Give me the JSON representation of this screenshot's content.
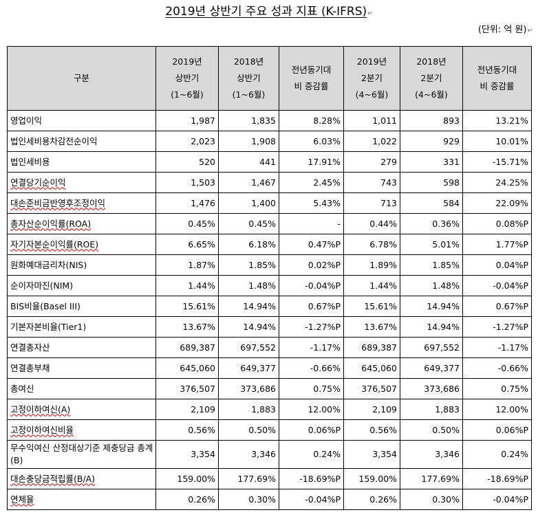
{
  "title": "2019년 상반기 주요 성과 지표 (K-IFRS)",
  "unit": "(단위: 억 원)",
  "columns": [
    {
      "lines": [
        "구분"
      ]
    },
    {
      "lines": [
        "2019년",
        "상반기",
        "(1~6월)"
      ]
    },
    {
      "lines": [
        "2018년",
        "상반기",
        "(1~6월)"
      ]
    },
    {
      "lines": [
        "전년동기대",
        "비 증감률"
      ]
    },
    {
      "lines": [
        "2019년",
        "2분기",
        "(4~6월)"
      ]
    },
    {
      "lines": [
        "2018년",
        "2분기",
        "(4~6월)"
      ]
    },
    {
      "lines": [
        "전년동기대",
        "비 증감률"
      ]
    }
  ],
  "rows": [
    {
      "label": "영업이익",
      "values": [
        "1,987",
        "1,835",
        "8.28%",
        "1,011",
        "893",
        "13.21%"
      ]
    },
    {
      "label": "법인세비용차감전순이익",
      "values": [
        "2,023",
        "1,908",
        "6.03%",
        "1,022",
        "929",
        "10.01%"
      ]
    },
    {
      "label": "법인세비용",
      "values": [
        "520",
        "441",
        "17.91%",
        "279",
        "331",
        "-15.71%"
      ]
    },
    {
      "label": "연결당기순이익",
      "values": [
        "1,503",
        "1,467",
        "2.45%",
        "743",
        "598",
        "24.25%"
      ]
    },
    {
      "label": "대손준비금반영후조정이익",
      "values": [
        "1,476",
        "1,400",
        "5.43%",
        "713",
        "584",
        "22.09%"
      ]
    },
    {
      "label": "총자산순이익률(ROA)",
      "values": [
        "0.45%",
        "0.45%",
        "-",
        "0.44%",
        "0.36%",
        "0.08%P"
      ]
    },
    {
      "label": "자기자본순이익률(ROE)",
      "values": [
        "6.65%",
        "6.18%",
        "0.47%P",
        "6.78%",
        "5.01%",
        "1.77%P"
      ]
    },
    {
      "label": "원화예대금리차(NIS)",
      "values": [
        "1.87%",
        "1.85%",
        "0.02%P",
        "1.89%",
        "1.85%",
        "0.04%P"
      ]
    },
    {
      "label": "순이자마진(NIM)",
      "values": [
        "1.44%",
        "1.48%",
        "-0.04%P",
        "1.44%",
        "1.48%",
        "-0.04%P"
      ]
    },
    {
      "label": "BIS비율(Basel III)",
      "values": [
        "15.61%",
        "14.94%",
        "0.67%P",
        "15.61%",
        "14.94%",
        "0.67%P"
      ]
    },
    {
      "label": "기본자본비율(Tier1)",
      "values": [
        "13.67%",
        "14.94%",
        "-1.27%P",
        "13.67%",
        "14.94%",
        "-1.27%P"
      ]
    },
    {
      "label": "연결총자산",
      "values": [
        "689,387",
        "697,552",
        "-1.17%",
        "689,387",
        "697,552",
        "-1.17%"
      ]
    },
    {
      "label": "연결총부채",
      "values": [
        "645,060",
        "649,377",
        "-0.66%",
        "645,060",
        "649,377",
        "-0.66%"
      ]
    },
    {
      "label": "총여신",
      "values": [
        "376,507",
        "373,686",
        "0.75%",
        "376,507",
        "373,686",
        "0.75%"
      ]
    },
    {
      "label": "고정이하여신(A)",
      "values": [
        "2,109",
        "1,883",
        "12.00%",
        "2,109",
        "1,883",
        "12.00%"
      ]
    },
    {
      "label": "고정이하여신비율",
      "values": [
        "0.56%",
        "0.50%",
        "0.06%P",
        "0.56%",
        "0.50%",
        "0.06%P"
      ]
    },
    {
      "label": "무수익여신 산정대상기준 제충당금 총계(B)",
      "values": [
        "3,354",
        "3,346",
        "0.24%",
        "3,354",
        "3,346",
        "0.24%"
      ]
    },
    {
      "label": "대손충당금적립률(B/A)",
      "values": [
        "159.00%",
        "177.69%",
        "-18.69%P",
        "159.00%",
        "177.69%",
        "-18.69%P"
      ]
    },
    {
      "label": "연체율",
      "values": [
        "0.26%",
        "0.30%",
        "-0.04%P",
        "0.26%",
        "0.30%",
        "-0.04%P"
      ]
    }
  ]
}
